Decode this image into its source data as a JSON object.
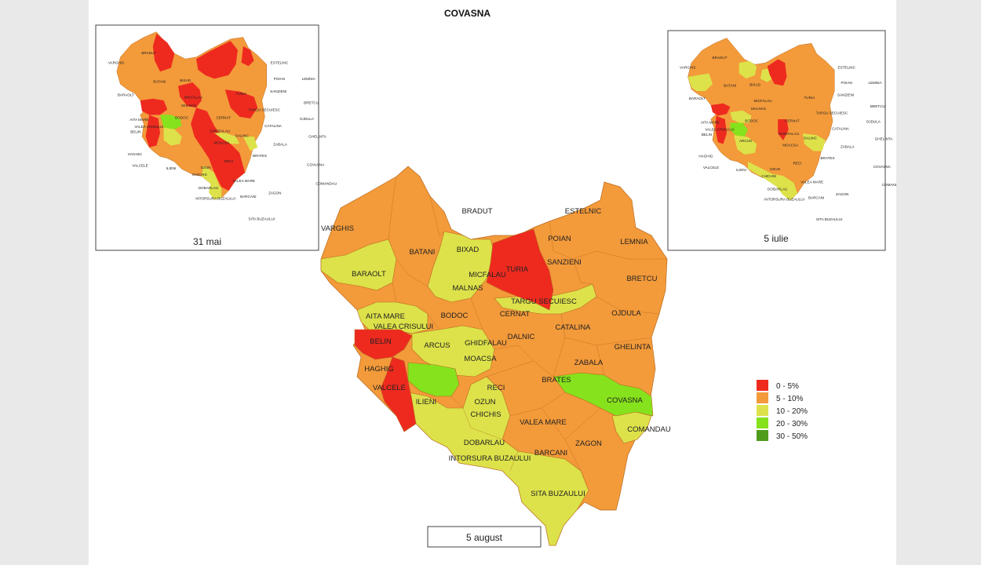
{
  "title": "COVASNA",
  "colors": {
    "c0_5": "#ee2a1f",
    "c5_10": "#f39a3a",
    "c10_20": "#dde24a",
    "c20_30": "#86e21c",
    "c30_50": "#4f9c1d"
  },
  "legend": [
    {
      "label": "0 - 5%",
      "color_key": "c0_5"
    },
    {
      "label": "5 - 10%",
      "color_key": "c5_10"
    },
    {
      "label": "10 - 20%",
      "color_key": "c10_20"
    },
    {
      "label": "20 - 30%",
      "color_key": "c20_30"
    },
    {
      "label": "30 - 50%",
      "color_key": "c30_50"
    }
  ],
  "maps": {
    "main": {
      "caption": "5 august",
      "labels": [
        {
          "name": "BRADUT",
          "cls": "c5_10"
        },
        {
          "name": "VARGHIS",
          "cls": "c5_10"
        },
        {
          "name": "BATANI",
          "cls": "c5_10"
        },
        {
          "name": "BIXAD",
          "cls": "c10_20"
        },
        {
          "name": "TURIA",
          "cls": "c0_5"
        },
        {
          "name": "ESTELNIC",
          "cls": "c5_10"
        },
        {
          "name": "POIAN",
          "cls": "c5_10"
        },
        {
          "name": "LEMNIA",
          "cls": "c5_10"
        },
        {
          "name": "SANZIENI",
          "cls": "c5_10"
        },
        {
          "name": "BRETCU",
          "cls": "c5_10"
        },
        {
          "name": "BARAOLT",
          "cls": "c10_20"
        },
        {
          "name": "MICFALAU",
          "cls": "c10_20"
        },
        {
          "name": "MALNAS",
          "cls": "c10_20"
        },
        {
          "name": "TARGU SECUIESC",
          "cls": "c10_20"
        },
        {
          "name": "OJDULA",
          "cls": "c5_10"
        },
        {
          "name": "AITA MARE",
          "cls": "c10_20"
        },
        {
          "name": "VALEA CRISULUI",
          "cls": "c10_20"
        },
        {
          "name": "BODOC",
          "cls": "c5_10"
        },
        {
          "name": "CERNAT",
          "cls": "c5_10"
        },
        {
          "name": "CATALINA",
          "cls": "c5_10"
        },
        {
          "name": "BELIN",
          "cls": "c0_5"
        },
        {
          "name": "ARCUS",
          "cls": "c10_20"
        },
        {
          "name": "GHIDFALAU",
          "cls": "c10_20"
        },
        {
          "name": "DALNIC",
          "cls": "c5_10"
        },
        {
          "name": "GHELINTA",
          "cls": "c5_10"
        },
        {
          "name": "MOACSA",
          "cls": "c10_20"
        },
        {
          "name": "ZABALA",
          "cls": "c5_10"
        },
        {
          "name": "HAGHIG",
          "cls": "c5_10"
        },
        {
          "name": "BRATES",
          "cls": "c20_30"
        },
        {
          "name": "VALCELE",
          "cls": "c0_5"
        },
        {
          "name": "RECI",
          "cls": "c5_10"
        },
        {
          "name": "COVASNA",
          "cls": "c20_30"
        },
        {
          "name": "ILIENI",
          "cls": "c20_30"
        },
        {
          "name": "OZUN",
          "cls": "c10_20"
        },
        {
          "name": "CHICHIS",
          "cls": "c10_20"
        },
        {
          "name": "VALEA MARE",
          "cls": "c5_10"
        },
        {
          "name": "COMANDAU",
          "cls": "c10_20"
        },
        {
          "name": "DOBARLAU",
          "cls": "c10_20"
        },
        {
          "name": "ZAGON",
          "cls": "c5_10"
        },
        {
          "name": "INTORSURA BUZAULUI",
          "cls": "c10_20"
        },
        {
          "name": "BARCANI",
          "cls": "c10_20"
        },
        {
          "name": "SITA BUZAULUI",
          "cls": "c10_20"
        }
      ]
    },
    "inset_left": {
      "caption": "31 mai",
      "labels": [
        "BRADUT",
        "VARGHIS",
        "BATANI",
        "BIXAD",
        "ESTELNIC",
        "POIAN",
        "LEMNIA",
        "TURIA",
        "SANZIENI",
        "BARAOLT",
        "MICFALAU",
        "MALNAS",
        "BRETCU",
        "TARGU SECUIESC",
        "AITA MARE",
        "BODOC",
        "CERNAT",
        "OJDULA",
        "VALEA CRISULUI",
        "CATALINA",
        "BELIN",
        "GHIDFALAU",
        "DALNIC",
        "GHELINTA",
        "MOACSA",
        "ZABALA",
        "HAGHIG",
        "VALCELE",
        "ILIENI",
        "OZUN",
        "RECI",
        "BRATES",
        "COVASNA",
        "CHICHIS",
        "VALEA MARE",
        "COMANDAU",
        "DOBARLAU",
        "ZAGON",
        "INTORSURA BUZAULUI",
        "BARCANI",
        "SITA BUZAULUI"
      ]
    },
    "inset_right": {
      "caption": "5 iulie",
      "labels": [
        "BRADUT",
        "VARGHIS",
        "BATANI",
        "BIXAD",
        "ESTELNIC",
        "POIAN",
        "LEMNIA",
        "TURIA",
        "SANZIENI",
        "BARAOLT",
        "MICFALAU",
        "MALNAS",
        "BRETCU",
        "TARGU SECUIESC",
        "AITA MARE",
        "BODOC",
        "CERNAT",
        "OJDULA",
        "VALEA CRISULUI",
        "CATALINA",
        "BELIN",
        "ARCUS",
        "GHIDFALAU",
        "DALNIC",
        "GHELINTA",
        "MOACSA",
        "ZABALA",
        "HAGHIG",
        "VALCELE",
        "ILIENI",
        "OZUN",
        "RECI",
        "BRATES",
        "COVASNA",
        "CHICHIS",
        "VALEA MARE",
        "COMANDAU",
        "DOBARLAU",
        "ZAGON",
        "INTORSURA BUZAULUI",
        "BARCANI",
        "SITA BUZAULUI"
      ]
    }
  }
}
